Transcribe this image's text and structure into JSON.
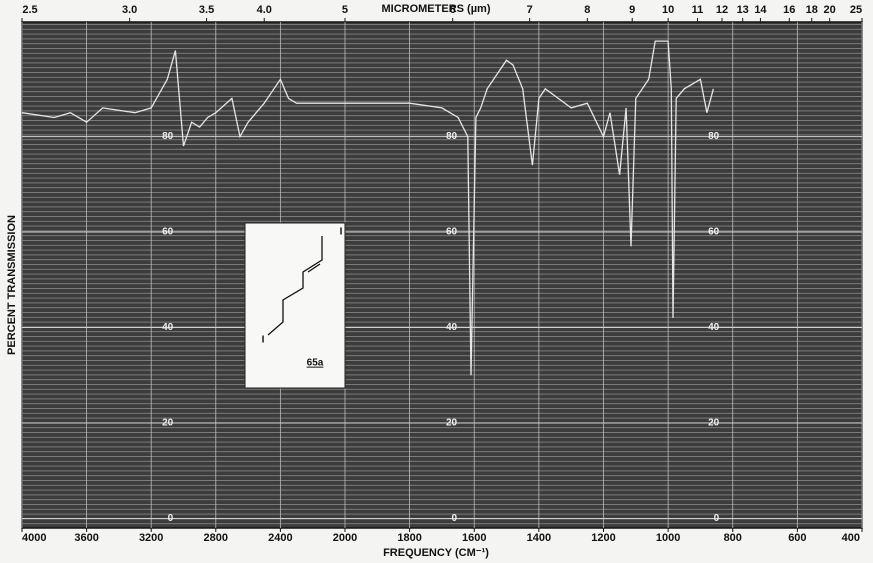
{
  "chart_data": {
    "type": "line",
    "x_label": "FREQUENCY (CM⁻¹)",
    "y_label": "PERCENT TRANSMISSION",
    "top_axis_label": "MICROMETERS (µm)",
    "xlim": [
      4000,
      400
    ],
    "x_scale_break": 2000,
    "xticks": [
      4000,
      3600,
      3200,
      2800,
      2400,
      2000,
      1800,
      1600,
      1400,
      1200,
      1000,
      800,
      600,
      400
    ],
    "top_ticks": [
      2.5,
      {
        "value": 3,
        "label": "3.0"
      },
      3.5,
      {
        "value": 4,
        "label": "4.0"
      },
      5,
      6,
      7,
      8,
      9,
      10,
      11,
      12,
      13,
      14,
      16,
      18,
      20,
      25
    ],
    "ylim": [
      -2,
      104
    ],
    "yticks": [
      0,
      20,
      40,
      60,
      80
    ],
    "grid": true,
    "x": [
      4000,
      3800,
      3700,
      3600,
      3500,
      3300,
      3200,
      3100,
      3050,
      3000,
      2950,
      2900,
      2850,
      2800,
      2700,
      2650,
      2600,
      2500,
      2400,
      2350,
      2300,
      2000,
      1800,
      1700,
      1650,
      1620,
      1610,
      1595,
      1580,
      1560,
      1500,
      1480,
      1450,
      1420,
      1400,
      1380,
      1300,
      1250,
      1200,
      1180,
      1150,
      1130,
      1115,
      1100,
      1060,
      1040,
      1000,
      990,
      985,
      975,
      950,
      900,
      880,
      860
    ],
    "series": [
      {
        "name": "65a",
        "color": "#e6e6e6",
        "values": [
          85,
          84,
          85,
          83,
          86,
          85,
          86,
          92,
          98,
          78,
          83,
          82,
          84,
          85,
          88,
          80,
          83,
          87,
          92,
          88,
          87,
          87,
          87,
          86,
          84,
          80,
          30,
          84,
          86,
          90,
          96,
          95,
          90,
          74,
          88,
          90,
          86,
          87,
          80,
          85,
          72,
          86,
          57,
          88,
          92,
          100,
          100,
          90,
          42,
          88,
          90,
          92,
          85,
          90
        ]
      }
    ],
    "annotations": [
      "I",
      "I",
      "65a"
    ]
  }
}
